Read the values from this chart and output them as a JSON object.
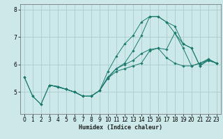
{
  "xlabel": "Humidex (Indice chaleur)",
  "bg_color": "#cce8e8",
  "grid_color": "#aacccc",
  "line_color": "#1a7a6e",
  "xlim": [
    -0.5,
    23.5
  ],
  "ylim": [
    4.2,
    8.2
  ],
  "yticks": [
    5,
    6,
    7,
    8
  ],
  "xticks": [
    0,
    1,
    2,
    3,
    4,
    5,
    6,
    7,
    8,
    9,
    10,
    11,
    12,
    13,
    14,
    15,
    16,
    17,
    18,
    19,
    20,
    21,
    22,
    23
  ],
  "series": [
    {
      "x": [
        0,
        1,
        2,
        3,
        4,
        5,
        6,
        7,
        8,
        9,
        10,
        11,
        12,
        13,
        14,
        15,
        16,
        17,
        18,
        19,
        20,
        21,
        22,
        23
      ],
      "y": [
        5.55,
        4.85,
        4.55,
        5.25,
        5.2,
        5.1,
        5.0,
        4.85,
        4.85,
        5.05,
        5.5,
        5.75,
        5.85,
        5.95,
        6.05,
        6.5,
        6.6,
        6.25,
        6.05,
        5.95,
        5.95,
        6.05,
        6.15,
        6.05
      ]
    },
    {
      "x": [
        0,
        1,
        2,
        3,
        4,
        5,
        6,
        7,
        8,
        9,
        10,
        11,
        12,
        13,
        14,
        15,
        16,
        17,
        18,
        19,
        20,
        21,
        22,
        23
      ],
      "y": [
        5.55,
        4.85,
        4.55,
        5.25,
        5.2,
        5.1,
        5.0,
        4.85,
        4.85,
        5.05,
        5.75,
        6.3,
        6.75,
        7.05,
        7.55,
        7.75,
        7.75,
        7.55,
        7.15,
        6.6,
        5.95,
        6.05,
        6.2,
        6.05
      ]
    },
    {
      "x": [
        3,
        4,
        5,
        6,
        7,
        8,
        9,
        10,
        11,
        12,
        13,
        14,
        15,
        16,
        17,
        18,
        19,
        20,
        21,
        22,
        23
      ],
      "y": [
        5.25,
        5.2,
        5.1,
        5.0,
        4.85,
        4.85,
        5.05,
        5.5,
        5.85,
        6.05,
        6.5,
        7.05,
        7.75,
        7.75,
        7.55,
        7.4,
        6.75,
        6.6,
        5.95,
        6.2,
        6.05
      ]
    },
    {
      "x": [
        3,
        5,
        6,
        7,
        8,
        9,
        10,
        11,
        12,
        13,
        14,
        15,
        16,
        17,
        18,
        19,
        20,
        21,
        22,
        23
      ],
      "y": [
        5.25,
        5.1,
        5.0,
        4.85,
        4.85,
        5.05,
        5.55,
        5.85,
        6.0,
        6.15,
        6.4,
        6.55,
        6.6,
        6.55,
        7.15,
        6.75,
        6.6,
        5.95,
        6.15,
        6.05
      ]
    }
  ]
}
